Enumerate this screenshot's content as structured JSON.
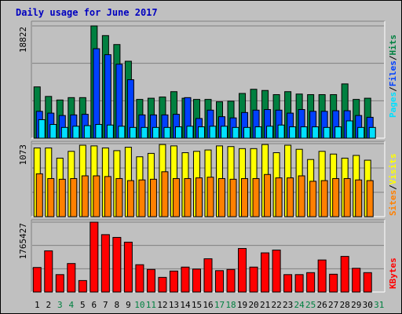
{
  "chart_data": {
    "type": "bar",
    "title": "Daily usage for June 2017",
    "categories": [
      "1",
      "2",
      "3",
      "4",
      "5",
      "6",
      "7",
      "8",
      "9",
      "10",
      "11",
      "12",
      "13",
      "14",
      "15",
      "16",
      "17",
      "18",
      "19",
      "20",
      "21",
      "22",
      "23",
      "24",
      "25",
      "26",
      "27",
      "28",
      "29",
      "30",
      "31"
    ],
    "weekend_days": [
      "3",
      "4",
      "10",
      "11",
      "17",
      "18",
      "24",
      "25",
      "31"
    ],
    "panels": [
      {
        "id": "hits-files-pages",
        "max_label": "18822",
        "ylim": [
          0,
          18822
        ],
        "series": [
          {
            "name": "Hits",
            "color": "#008040",
            "values": [
              8600,
              7000,
              6400,
              6800,
              6800,
              18822,
              17200,
              15700,
              12900,
              6500,
              6700,
              6900,
              7800,
              6700,
              6500,
              6500,
              6100,
              6200,
              7500,
              8200,
              8000,
              7300,
              7800,
              7400,
              7300,
              7300,
              7300,
              9100,
              6500,
              6700,
              null
            ]
          },
          {
            "name": "Files",
            "color": "#0040ff",
            "values": [
              4500,
              4200,
              3800,
              3900,
              4000,
              15000,
              14000,
              12400,
              9800,
              3900,
              3900,
              3900,
              4000,
              6800,
              3300,
              4700,
              3600,
              3400,
              4300,
              4700,
              4800,
              4700,
              4200,
              4800,
              4500,
              4500,
              4600,
              4600,
              3800,
              3500,
              null
            ]
          },
          {
            "name": "Pages",
            "color": "#00e0ff",
            "values": [
              3100,
              2300,
              1800,
              2000,
              2100,
              2300,
              2200,
              2000,
              1800,
              1800,
              1800,
              1800,
              1900,
              2000,
              1900,
              2000,
              2000,
              1800,
              1800,
              1900,
              2000,
              2200,
              1900,
              1900,
              1900,
              1800,
              1900,
              2900,
              1800,
              1800,
              null
            ]
          }
        ]
      },
      {
        "id": "visits-sites",
        "max_label": "1073",
        "ylim": [
          0,
          1073
        ],
        "series": [
          {
            "name": "Visits",
            "color": "#ffff00",
            "values": [
              1010,
              1010,
              860,
              960,
              1050,
              1040,
              1010,
              970,
              1020,
              880,
              930,
              1060,
              1040,
              940,
              960,
              980,
              1040,
              1030,
              1000,
              1000,
              1060,
              940,
              1050,
              990,
              840,
              960,
              920,
              860,
              900,
              830,
              null
            ]
          },
          {
            "name": "Sites",
            "color": "#ff8000",
            "values": [
              630,
              560,
              550,
              560,
              600,
              600,
              590,
              560,
              530,
              540,
              550,
              660,
              560,
              560,
              570,
              580,
              560,
              550,
              560,
              560,
              620,
              570,
              570,
              600,
              520,
              530,
              560,
              560,
              540,
              530,
              null
            ]
          }
        ]
      },
      {
        "id": "kbytes",
        "max_label": "1765427",
        "ylim": [
          0,
          1765427
        ],
        "series": [
          {
            "name": "KBytes",
            "color": "#ff0000",
            "values": [
              620000,
              1040000,
              440000,
              720000,
              290000,
              1765427,
              1450000,
              1380000,
              1260000,
              690000,
              570000,
              370000,
              530000,
              630000,
              580000,
              840000,
              540000,
              570000,
              1100000,
              630000,
              990000,
              1060000,
              440000,
              440000,
              490000,
              810000,
              450000,
              900000,
              600000,
              490000,
              null
            ]
          }
        ]
      }
    ]
  }
}
